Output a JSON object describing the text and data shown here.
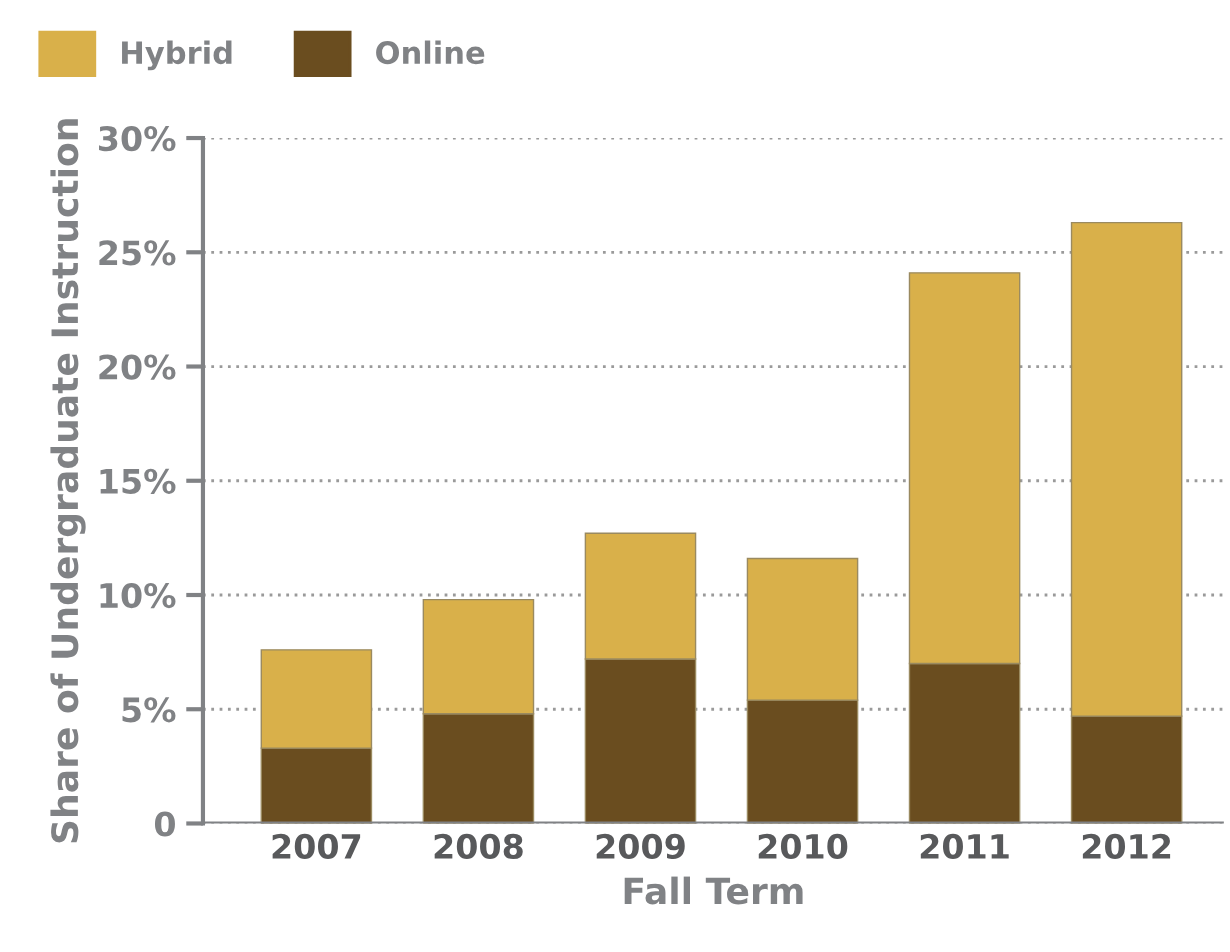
{
  "chart_data": {
    "type": "bar",
    "stacked": true,
    "categories": [
      "2007",
      "2008",
      "2009",
      "2010",
      "2011",
      "2012"
    ],
    "series": [
      {
        "name": "Online",
        "color": "#6a4d1f",
        "values": [
          3.3,
          4.8,
          7.2,
          5.4,
          7.0,
          4.7
        ]
      },
      {
        "name": "Hybrid",
        "color": "#d9b04a",
        "values": [
          4.3,
          5.0,
          5.5,
          6.2,
          17.1,
          21.6
        ]
      }
    ],
    "xlabel": "Fall Term",
    "ylabel": "Share of Undergraduate Instruction",
    "ylim": [
      0,
      30
    ],
    "yticks": [
      {
        "value": 0,
        "label": "0"
      },
      {
        "value": 5,
        "label": "5%"
      },
      {
        "value": 10,
        "label": "10%"
      },
      {
        "value": 15,
        "label": "15%"
      },
      {
        "value": 20,
        "label": "20%"
      },
      {
        "value": 25,
        "label": "25%"
      },
      {
        "value": 30,
        "label": "30%"
      }
    ],
    "grid": "y",
    "legend": "top left"
  }
}
